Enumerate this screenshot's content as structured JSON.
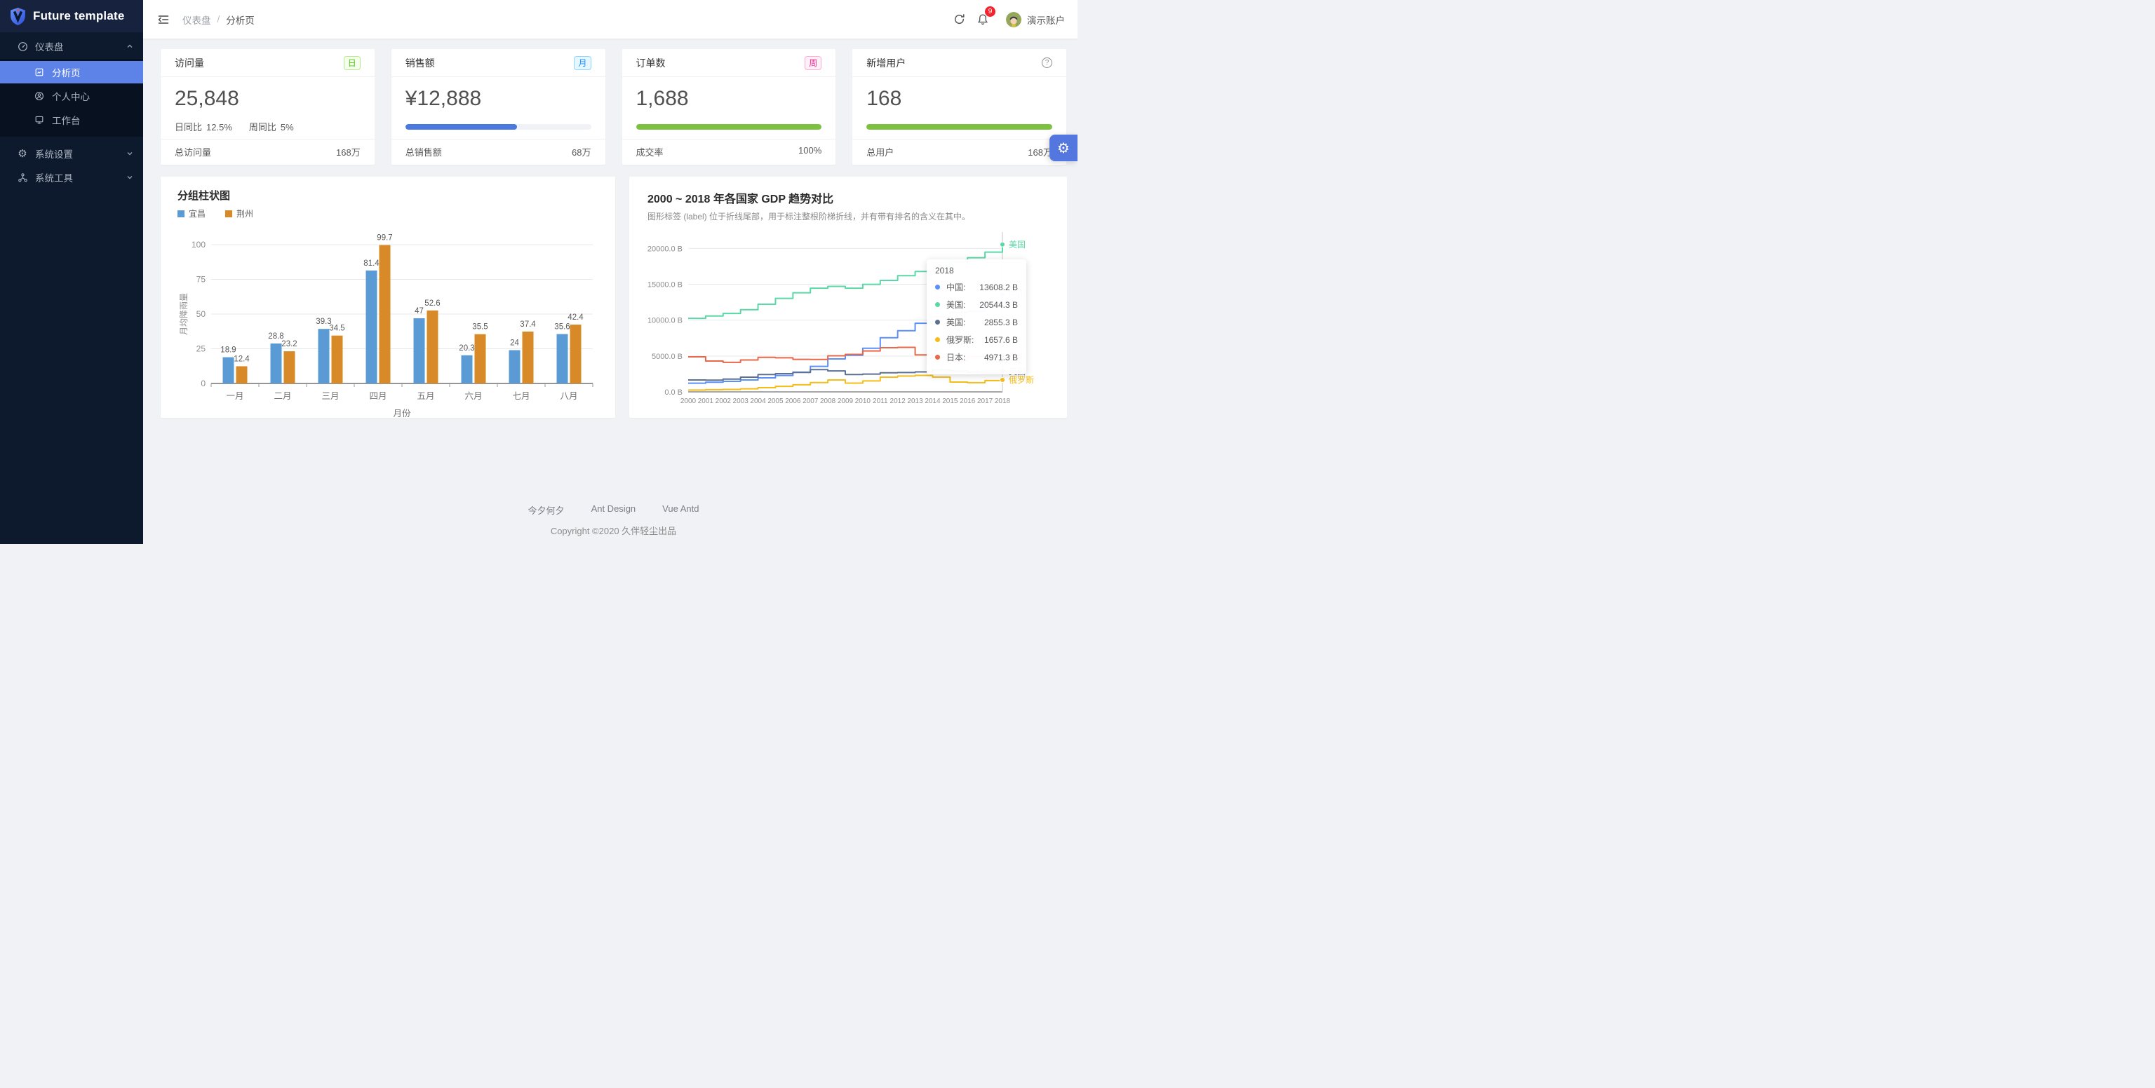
{
  "brand": {
    "name": "Future template"
  },
  "sidebar": {
    "items": [
      {
        "label": "仪表盘",
        "icon": "dashboard-icon",
        "expanded": true
      },
      {
        "label": "分析页",
        "icon": "analysis-page-icon",
        "selected": true
      },
      {
        "label": "个人中心",
        "icon": "user-icon"
      },
      {
        "label": "工作台",
        "icon": "workbench-icon"
      },
      {
        "label": "系统设置",
        "icon": "gear-icon",
        "expanded": false
      },
      {
        "label": "系统工具",
        "icon": "tools-icon",
        "expanded": false
      }
    ]
  },
  "header": {
    "breadcrumb": {
      "parent": "仪表盘",
      "separator": "/",
      "current": "分析页"
    },
    "notification_count": "9",
    "username": "演示账户"
  },
  "stat_cards": [
    {
      "title": "访问量",
      "badge": {
        "text": "日",
        "color": "#52c41a",
        "bg": "#f6ffed",
        "border": "#b7eb8f"
      },
      "value": "25,848",
      "trend": [
        {
          "label": "日同比",
          "value": "12.5%"
        },
        {
          "label": "周同比",
          "value": "5%"
        }
      ],
      "footer": {
        "label": "总访问量",
        "value": "168万"
      }
    },
    {
      "title": "销售额",
      "badge": {
        "text": "月",
        "color": "#1890ff",
        "bg": "#e6f7ff",
        "border": "#91d5ff"
      },
      "value": "¥12,888",
      "progress": {
        "percent": 60,
        "color": "#4a7ae0"
      },
      "footer": {
        "label": "总销售额",
        "value": "68万"
      }
    },
    {
      "title": "订单数",
      "badge": {
        "text": "周",
        "color": "#eb2f96",
        "bg": "#fff0f6",
        "border": "#ffadd2"
      },
      "value": "1,688",
      "progress": {
        "percent": 100,
        "color": "#7dc141"
      },
      "footer": {
        "label": "成交率",
        "value": "100%"
      }
    },
    {
      "title": "新增用户",
      "badge_icon": "question-circle-icon",
      "value": "168",
      "progress": {
        "percent": 100,
        "color": "#7dc141"
      },
      "footer": {
        "label": "总用户",
        "value": "168万"
      }
    }
  ],
  "chart_data": [
    {
      "type": "bar",
      "title": "分组柱状图",
      "categories": [
        "一月",
        "二月",
        "三月",
        "四月",
        "五月",
        "六月",
        "七月",
        "八月"
      ],
      "series": [
        {
          "name": "宜昌",
          "color": "#5B9BD5",
          "values": [
            18.9,
            28.8,
            39.3,
            81.4,
            47,
            20.3,
            24,
            35.6
          ]
        },
        {
          "name": "荆州",
          "color": "#D98A28",
          "values": [
            12.4,
            23.2,
            34.5,
            99.7,
            52.6,
            35.5,
            37.4,
            42.4
          ]
        }
      ],
      "xlabel": "月份",
      "ylabel": "月均降雨量",
      "ylim": [
        0,
        100
      ],
      "yticks": [
        0,
        25,
        50,
        75,
        100
      ],
      "grid": true,
      "legend_position": "top-left"
    },
    {
      "type": "line",
      "variant": "step-after",
      "title": "2000 ~ 2018 年各国家 GDP 趋势对比",
      "subtitle": "图形标签 (label) 位于折线尾部，用于标注整根阶梯折线，并有带有排名的含义在其中。",
      "x": [
        2000,
        2001,
        2002,
        2003,
        2004,
        2005,
        2006,
        2007,
        2008,
        2009,
        2010,
        2011,
        2012,
        2013,
        2014,
        2015,
        2016,
        2017,
        2018
      ],
      "unit": "B",
      "ylim": [
        0,
        21500
      ],
      "ytick_values": [
        0,
        5000,
        10000,
        15000,
        20000
      ],
      "ytick_labels": [
        "0.0 B",
        "5000.0 B",
        "10000.0 B",
        "15000.0 B",
        "20000.0 B"
      ],
      "grid": true,
      "legend_position": "line-end-labels",
      "series": [
        {
          "name": "中国",
          "color": "#5B8FF9",
          "values": [
            1211.3,
            1339.4,
            1470.6,
            1660.3,
            1955.3,
            2286.0,
            2752.1,
            3550.3,
            4594.3,
            5101.7,
            6087.2,
            7551.5,
            8532.2,
            9570.4,
            10475.7,
            11061.6,
            11233.3,
            12310.4,
            13608.2
          ]
        },
        {
          "name": "美国",
          "color": "#5AD8A6",
          "values": [
            10252.3,
            10581.8,
            10936.4,
            11458.2,
            12213.7,
            13036.6,
            13814.6,
            14451.9,
            14712.8,
            14448.9,
            14992.1,
            15542.6,
            16197.0,
            16784.8,
            17521.7,
            18219.3,
            18707.2,
            19485.4,
            20544.3
          ]
        },
        {
          "name": "英国",
          "color": "#5D7092",
          "values": [
            1657.8,
            1640.9,
            1784.4,
            2053.0,
            2416.9,
            2538.7,
            2713.7,
            3100.9,
            2922.7,
            2412.8,
            2475.2,
            2659.3,
            2704.9,
            2786.0,
            3063.8,
            2928.6,
            2694.3,
            2666.2,
            2855.3
          ]
        },
        {
          "name": "俄罗斯",
          "color": "#F6BD16",
          "values": [
            259.7,
            306.6,
            345.1,
            430.3,
            591.0,
            764.0,
            989.9,
            1299.7,
            1660.8,
            1222.6,
            1524.9,
            2051.7,
            2210.3,
            2297.1,
            2063.7,
            1368.4,
            1284.7,
            1578.6,
            1657.6
          ]
        },
        {
          "name": "日本",
          "color": "#E8684A",
          "values": [
            4887.5,
            4303.5,
            4115.1,
            4445.7,
            4815.1,
            4755.4,
            4530.4,
            4515.3,
            5037.9,
            5231.4,
            5700.1,
            6157.5,
            6203.2,
            5155.7,
            4850.4,
            4389.5,
            4926.7,
            4859.9,
            4971.3
          ]
        }
      ],
      "tooltip": {
        "title": "2018",
        "rows": [
          {
            "name": "中国",
            "value": "13608.2 B",
            "color": "#5B8FF9"
          },
          {
            "name": "美国",
            "value": "20544.3 B",
            "color": "#5AD8A6"
          },
          {
            "name": "英国",
            "value": "2855.3 B",
            "color": "#5D7092"
          },
          {
            "name": "俄罗斯",
            "value": "1657.6 B",
            "color": "#F6BD16"
          },
          {
            "name": "日本",
            "value": "4971.3 B",
            "color": "#E8684A"
          }
        ]
      }
    }
  ],
  "footer": {
    "links": [
      "今夕何夕",
      "Ant Design",
      "Vue Antd"
    ],
    "copyright": "Copyright ©2020 久伴轻尘出品"
  }
}
